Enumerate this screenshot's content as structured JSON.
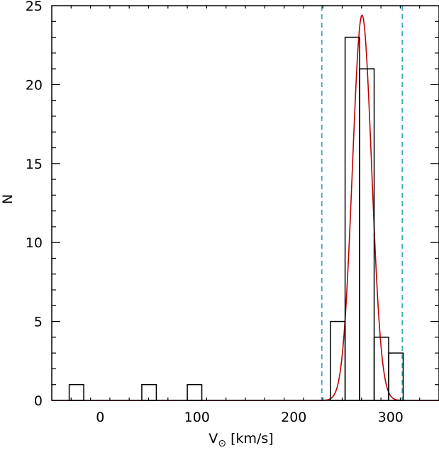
{
  "chart_data": {
    "type": "histogram",
    "xlabel": "V",
    "xlabel_subscript": "⊙",
    "xlabel_unit": "[km/s]",
    "ylabel": "N",
    "xlim": [
      -50,
      350
    ],
    "ylim": [
      0,
      25
    ],
    "xticks": [
      0,
      100,
      200,
      300
    ],
    "yticks": [
      0,
      5,
      10,
      15,
      20,
      25
    ],
    "histogram": {
      "bin_width": 15,
      "bins": [
        {
          "x0": -32,
          "x1": -17,
          "count": 1
        },
        {
          "x0": 43,
          "x1": 58,
          "count": 1
        },
        {
          "x0": 90,
          "x1": 105,
          "count": 1
        },
        {
          "x0": 238,
          "x1": 253,
          "count": 5
        },
        {
          "x0": 253,
          "x1": 268,
          "count": 23
        },
        {
          "x0": 268,
          "x1": 283,
          "count": 21
        },
        {
          "x0": 283,
          "x1": 298,
          "count": 4
        },
        {
          "x0": 298,
          "x1": 313,
          "count": 3
        }
      ],
      "color": "#000000"
    },
    "gaussian_fit": {
      "mean": 270.5,
      "sigma": 9.9,
      "amplitude": 24.4,
      "color": "#c00000"
    },
    "vlines": [
      {
        "x": 229,
        "style": "dashed",
        "color": "#1fa3b8"
      },
      {
        "x": 312,
        "style": "dashed",
        "color": "#1fa3b8"
      }
    ]
  }
}
